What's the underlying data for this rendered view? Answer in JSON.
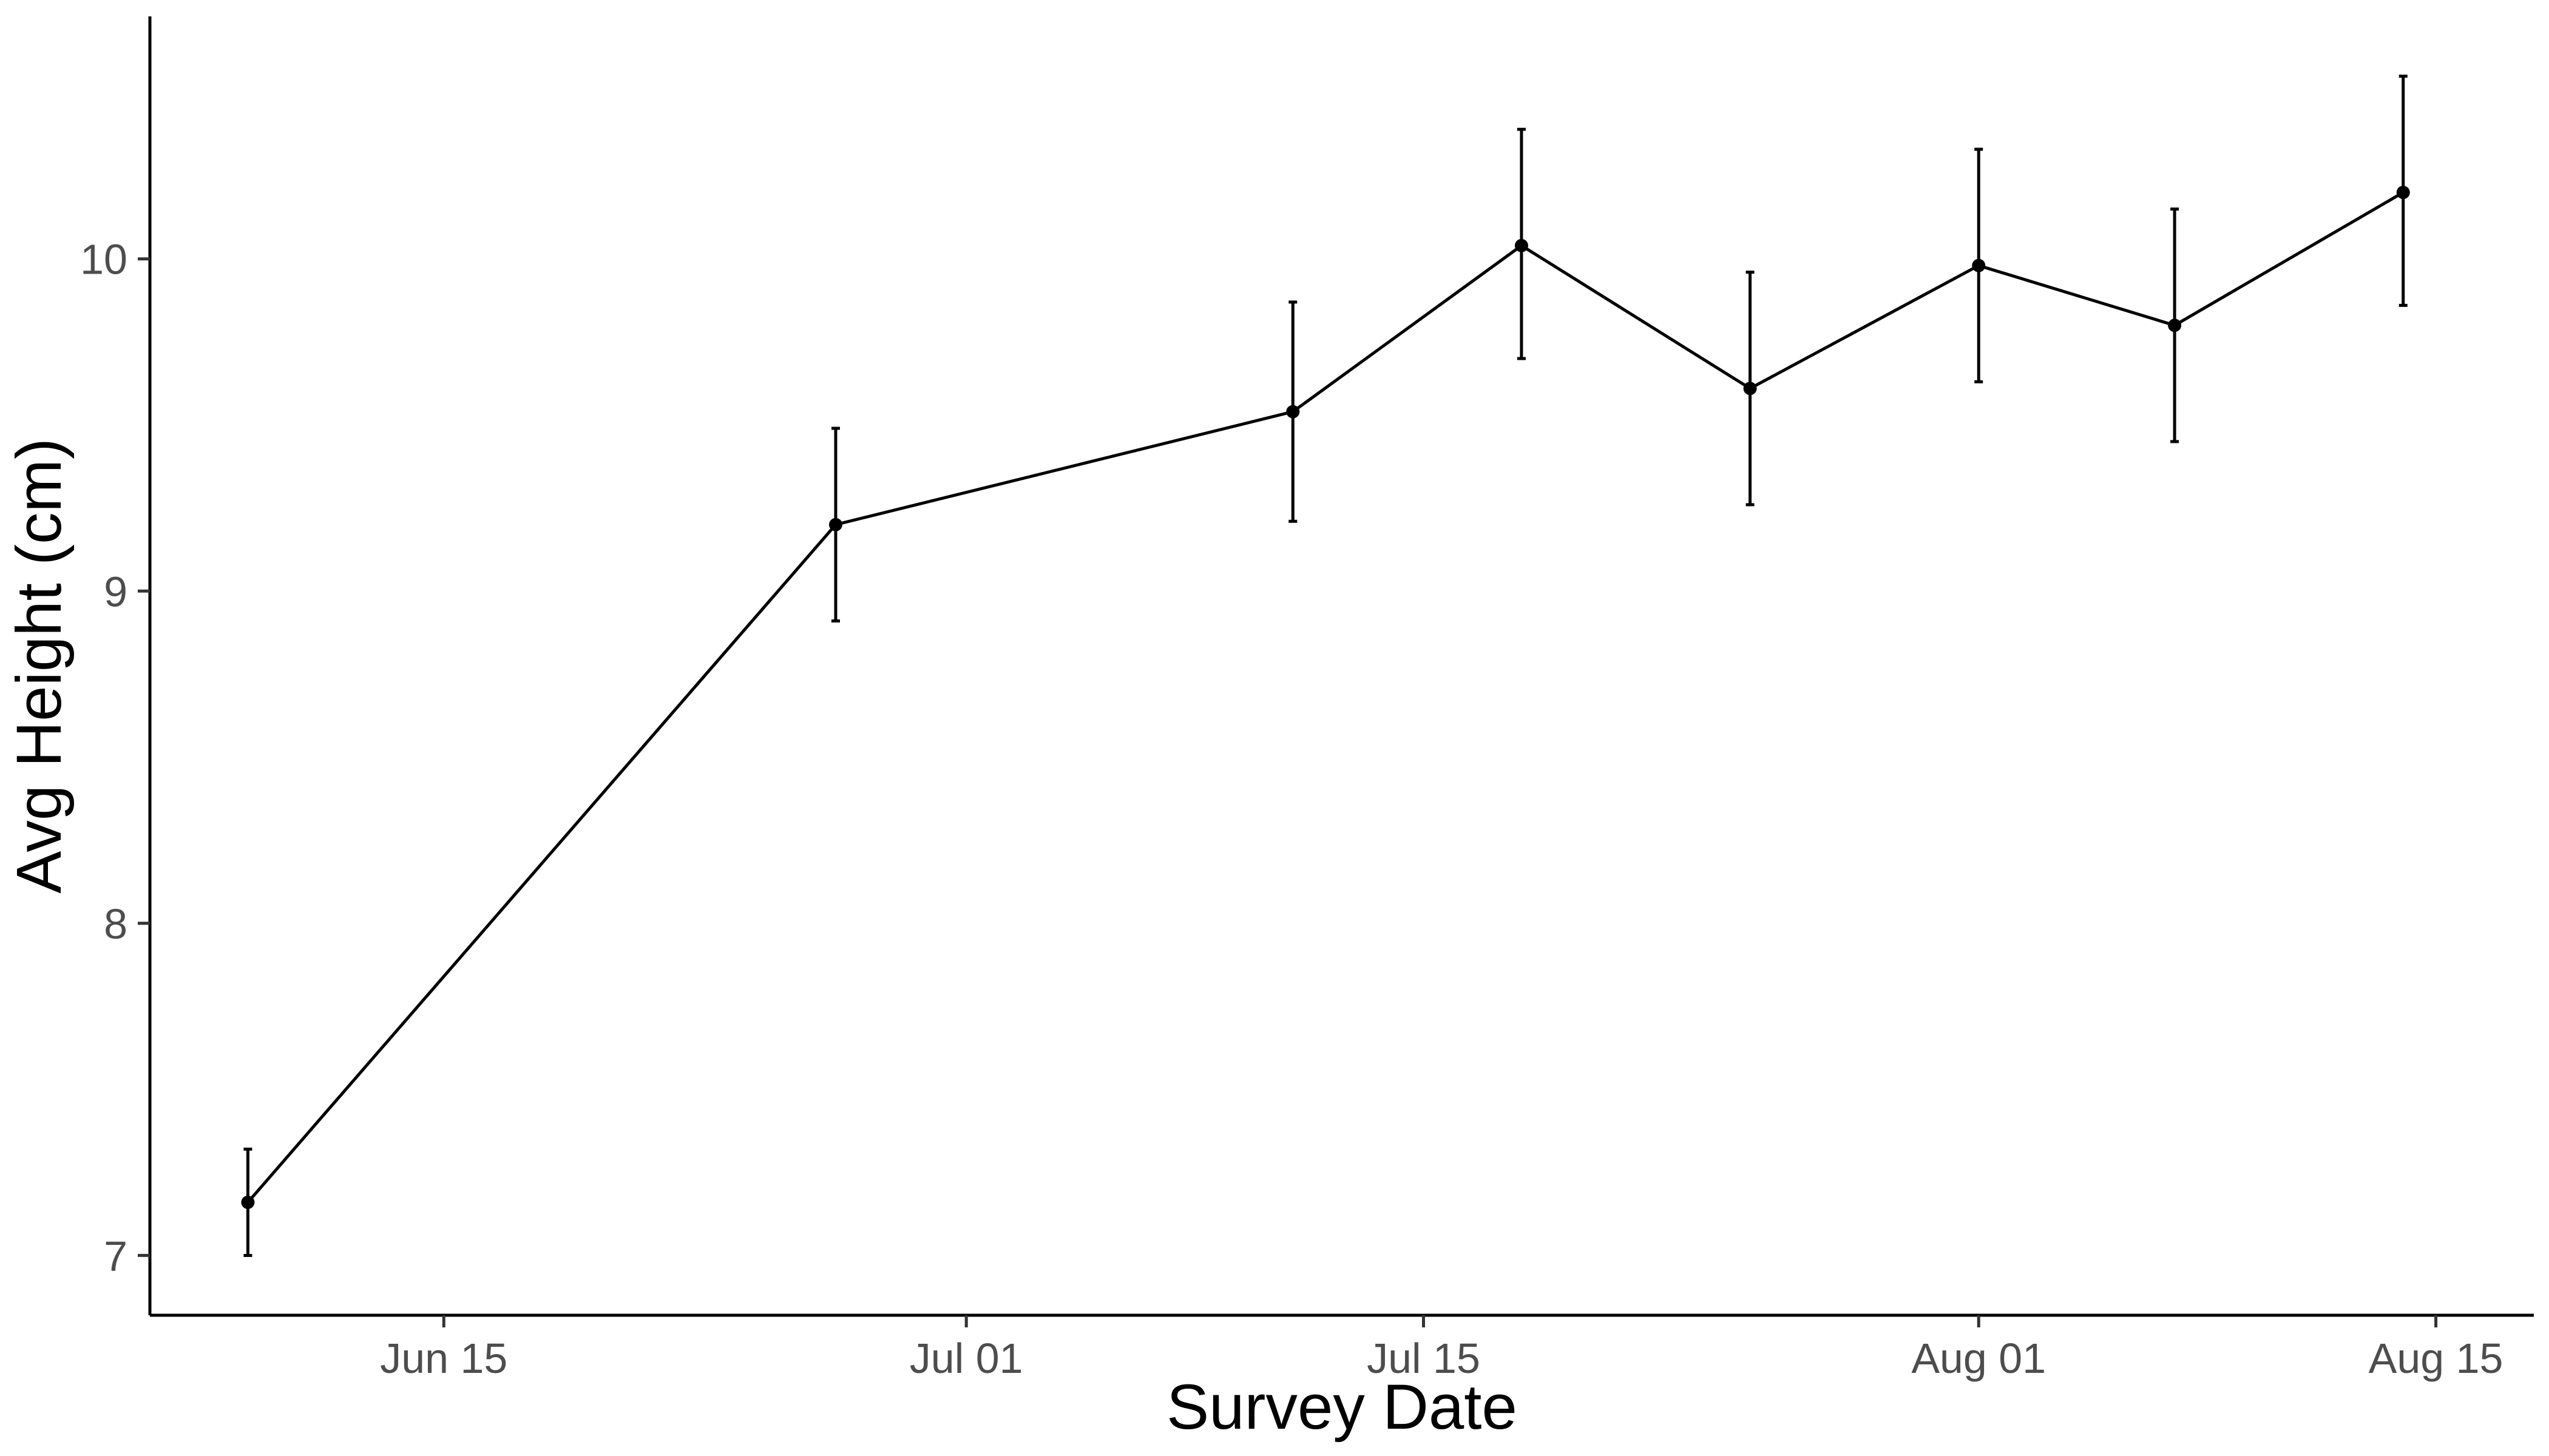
{
  "chart_data": {
    "type": "line",
    "title": "",
    "xlabel": "Survey Date",
    "ylabel": "Avg Height (cm)",
    "x_type": "date",
    "xlim": [
      "2025-06-06",
      "2025-08-18"
    ],
    "ylim": [
      6.82,
      10.73
    ],
    "x_ticks": [
      {
        "date": "2025-06-15",
        "label": "Jun 15"
      },
      {
        "date": "2025-07-01",
        "label": "Jul 01"
      },
      {
        "date": "2025-07-15",
        "label": "Jul 15"
      },
      {
        "date": "2025-08-01",
        "label": "Aug 01"
      },
      {
        "date": "2025-08-15",
        "label": "Aug 15"
      }
    ],
    "y_ticks": [
      {
        "value": 7,
        "label": "7"
      },
      {
        "value": 8,
        "label": "8"
      },
      {
        "value": 9,
        "label": "9"
      },
      {
        "value": 10,
        "label": "10"
      }
    ],
    "grid": false,
    "legend": "none",
    "line_color": "#000000",
    "series": [
      {
        "points": [
          {
            "x": "2025-06-09",
            "y": 7.16,
            "ymin": 7.0,
            "ymax": 7.32
          },
          {
            "x": "2025-06-27",
            "y": 9.2,
            "ymin": 8.91,
            "ymax": 9.49
          },
          {
            "x": "2025-07-11",
            "y": 9.54,
            "ymin": 9.21,
            "ymax": 9.87
          },
          {
            "x": "2025-07-18",
            "y": 10.04,
            "ymin": 9.7,
            "ymax": 10.39
          },
          {
            "x": "2025-07-25",
            "y": 9.61,
            "ymin": 9.26,
            "ymax": 9.96
          },
          {
            "x": "2025-08-01",
            "y": 9.98,
            "ymin": 9.63,
            "ymax": 10.33
          },
          {
            "x": "2025-08-07",
            "y": 9.8,
            "ymin": 9.45,
            "ymax": 10.15
          },
          {
            "x": "2025-08-14",
            "y": 10.2,
            "ymin": 9.86,
            "ymax": 10.55
          }
        ]
      }
    ]
  }
}
